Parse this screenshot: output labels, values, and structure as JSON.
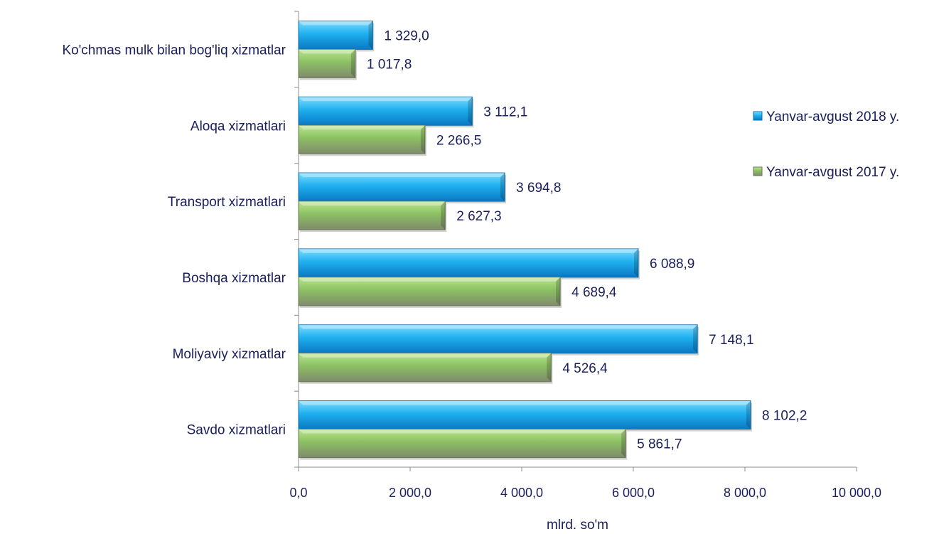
{
  "chart_data": {
    "type": "bar",
    "orientation": "horizontal",
    "categories": [
      "Ko'chmas mulk bilan bog'liq xizmatlar",
      "Aloqa xizmatlari",
      "Transport xizmatlari",
      "Boshqa xizmatlar",
      "Moliyaviy xizmatlar",
      "Savdo xizmatlari"
    ],
    "series": [
      {
        "name": "Yanvar-avgust 2018 y.",
        "color": "#1aa7e8",
        "values": [
          1329.0,
          3112.1,
          3694.8,
          6088.9,
          7148.1,
          8102.2
        ],
        "labels": [
          "1 329,0",
          "3 112,1",
          "3 694,8",
          "6 088,9",
          "7 148,1",
          "8 102,2"
        ]
      },
      {
        "name": "Yanvar-avgust 2017 y.",
        "color": "#8ab66a",
        "values": [
          1017.8,
          2266.5,
          2627.3,
          4689.4,
          4526.4,
          5861.7
        ],
        "labels": [
          "1 017,8",
          "2 266,5",
          "2 627,3",
          "4 689,4",
          "4 526,4",
          "5 861,7"
        ]
      }
    ],
    "xlim": [
      0,
      10000
    ],
    "xticks": [
      0,
      2000,
      4000,
      6000,
      8000,
      10000
    ],
    "xtick_labels": [
      "0,0",
      "2 000,0",
      "4 000,0",
      "6 000,0",
      "8 000,0",
      "10 000,0"
    ],
    "xlabel": "mlrd. so'm",
    "ylabel": "",
    "title": "",
    "grid": false,
    "legend_position": "right"
  }
}
